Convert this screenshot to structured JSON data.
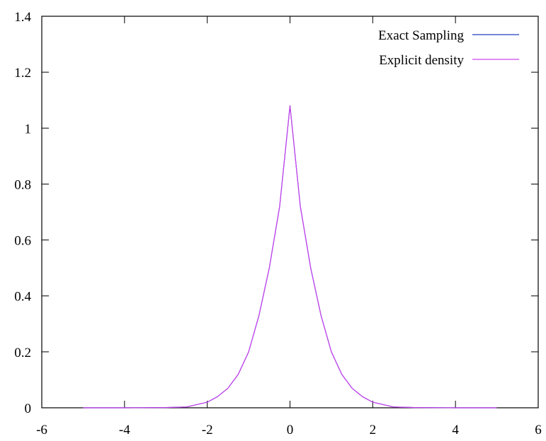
{
  "chart_data": {
    "type": "line",
    "title": "",
    "xlabel": "",
    "ylabel": "",
    "xlim": [
      -6,
      6
    ],
    "ylim": [
      0,
      1.4
    ],
    "x_ticks": [
      -6,
      -4,
      -2,
      0,
      2,
      4,
      6
    ],
    "y_ticks": [
      0,
      0.2,
      0.4,
      0.6,
      0.8,
      1,
      1.2,
      1.4
    ],
    "x_tick_labels": [
      "-6",
      "-4",
      "-2",
      "0",
      "2",
      "4",
      "6"
    ],
    "y_tick_labels": [
      "0",
      "0.2",
      "0.4",
      "0.6",
      "0.8",
      "1",
      "1.2",
      "1.4"
    ],
    "grid": false,
    "legend_position": "top-right",
    "series": [
      {
        "name": "Exact Sampling",
        "color": "#1f3fbf",
        "x": [
          -5,
          -4.5,
          -4,
          -3.5,
          -3,
          -2.5,
          -2,
          -1.75,
          -1.5,
          -1.25,
          -1,
          -0.75,
          -0.5,
          -0.25,
          0,
          0.25,
          0.5,
          0.75,
          1,
          1.25,
          1.5,
          1.75,
          2,
          2.5,
          3,
          3.5,
          4,
          4.5,
          5
        ],
        "y": [
          0,
          0,
          0,
          0.0005,
          0.001,
          0.003,
          0.02,
          0.04,
          0.07,
          0.12,
          0.2,
          0.33,
          0.5,
          0.72,
          1.08,
          0.72,
          0.5,
          0.33,
          0.2,
          0.12,
          0.07,
          0.04,
          0.02,
          0.003,
          0.001,
          0.0005,
          0,
          0,
          0
        ]
      },
      {
        "name": "Explicit density",
        "color": "#cc44ee",
        "x": [
          -5,
          -4.5,
          -4,
          -3.5,
          -3,
          -2.5,
          -2,
          -1.75,
          -1.5,
          -1.25,
          -1,
          -0.75,
          -0.5,
          -0.25,
          0,
          0.25,
          0.5,
          0.75,
          1,
          1.25,
          1.5,
          1.75,
          2,
          2.5,
          3,
          3.5,
          4,
          4.5,
          5
        ],
        "y": [
          0,
          0,
          0,
          0.0005,
          0.001,
          0.003,
          0.02,
          0.04,
          0.07,
          0.12,
          0.2,
          0.33,
          0.5,
          0.72,
          1.08,
          0.72,
          0.5,
          0.33,
          0.2,
          0.12,
          0.07,
          0.04,
          0.02,
          0.003,
          0.001,
          0.0005,
          0,
          0,
          0
        ]
      }
    ]
  }
}
